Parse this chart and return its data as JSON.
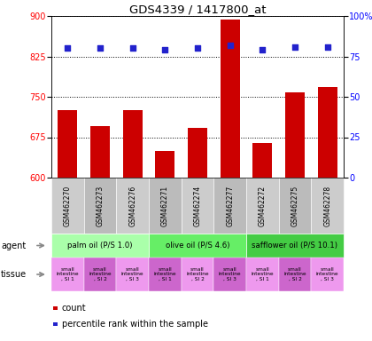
{
  "title": "GDS4339 / 1417800_at",
  "samples": [
    "GSM462270",
    "GSM462273",
    "GSM462276",
    "GSM462271",
    "GSM462274",
    "GSM462277",
    "GSM462272",
    "GSM462275",
    "GSM462278"
  ],
  "counts": [
    725,
    695,
    725,
    650,
    693,
    893,
    665,
    758,
    768
  ],
  "percentiles": [
    80,
    80,
    80,
    79,
    80,
    82,
    79,
    81,
    81
  ],
  "ylim_left": [
    600,
    900
  ],
  "yticks_left": [
    600,
    675,
    750,
    825,
    900
  ],
  "ylim_right": [
    0,
    100
  ],
  "yticks_right": [
    0,
    25,
    50,
    75,
    100
  ],
  "bar_color": "#cc0000",
  "dot_color": "#2222cc",
  "agents": [
    {
      "label": "palm oil (P/S 1.0)",
      "color": "#aaffaa",
      "start": 0,
      "end": 3
    },
    {
      "label": "olive oil (P/S 4.6)",
      "color": "#66ee66",
      "start": 3,
      "end": 6
    },
    {
      "label": "safflower oil (P/S 10.1)",
      "color": "#44cc44",
      "start": 6,
      "end": 9
    }
  ],
  "tissue_colors_alt": [
    "#ee99ee",
    "#cc66cc"
  ],
  "legend_count_color": "#cc0000",
  "legend_pct_color": "#2222cc",
  "bg_color": "#ffffff",
  "gsm_colors": [
    "#cccccc",
    "#bbbbbb"
  ],
  "tissue_labels": [
    "small\nintestine\n, SI 1",
    "small\nintestine\n, SI 2",
    "small\nintestine\n, SI 3",
    "small\nintestine\n, SI 1",
    "small\nintestine\n, SI 2",
    "small\nintestine\n, SI 3",
    "small\nintestine\n, SI 1",
    "small\nintestine\n, SI 2",
    "small\nintestine\n, SI 3"
  ]
}
